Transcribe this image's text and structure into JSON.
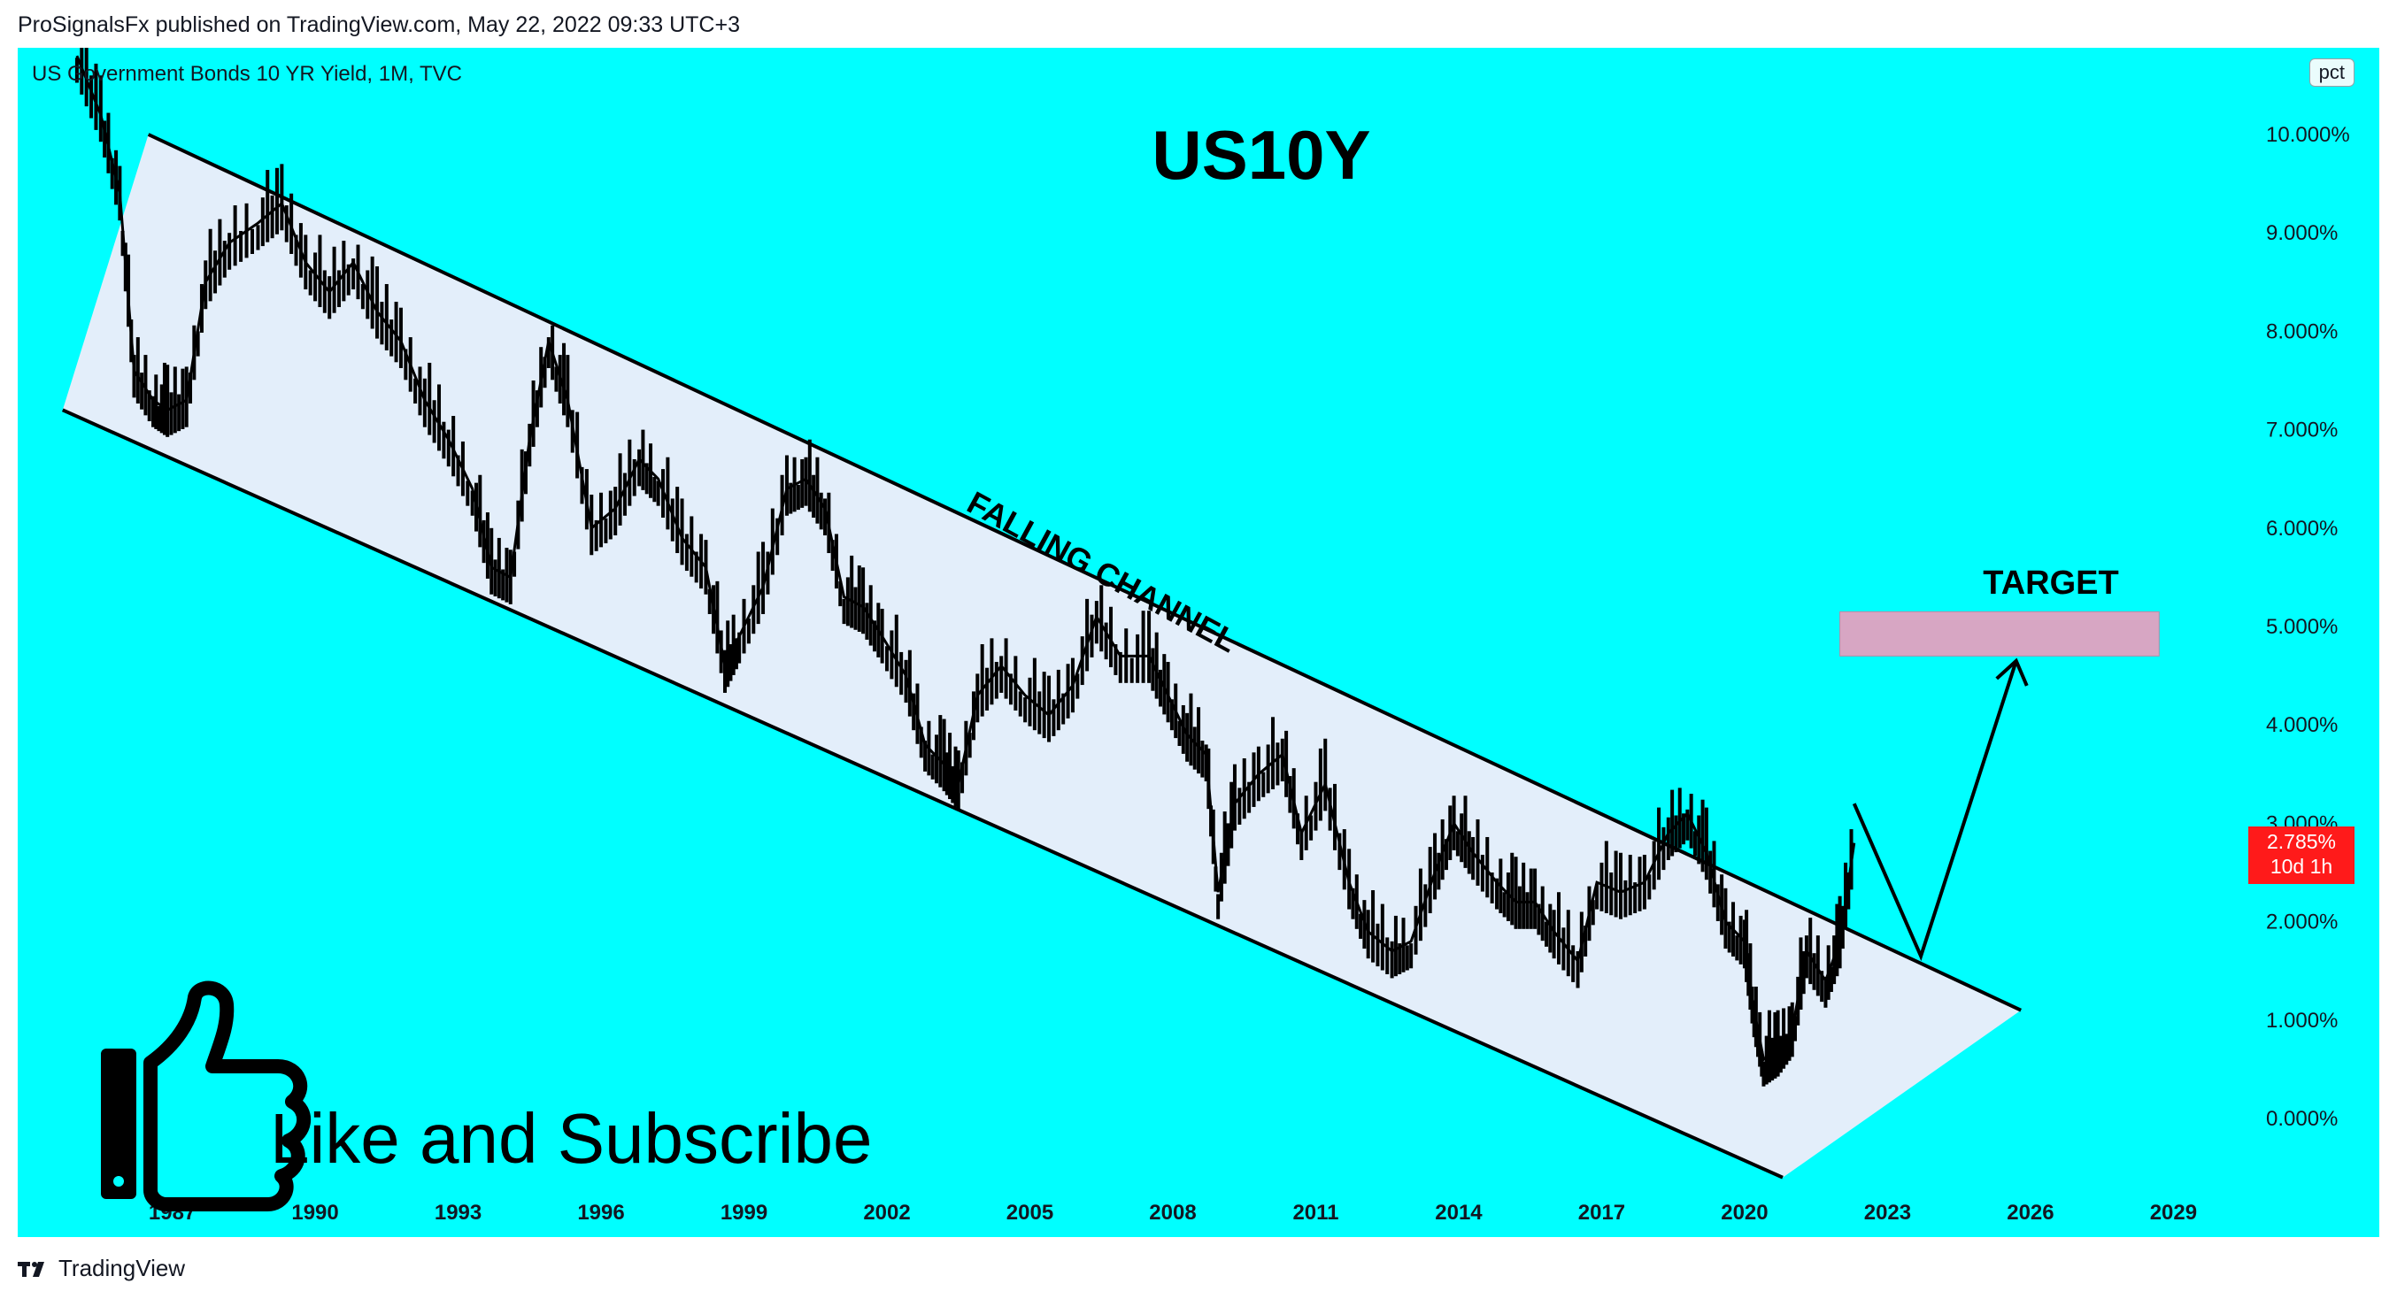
{
  "header": {
    "caption": "ProSignalsFx published on TradingView.com, May 22, 2022 09:33 UTC+3"
  },
  "chart": {
    "symbol": "US Government Bonds 10 YR Yield, 1M, TVC",
    "scale_badge": "pct",
    "title": "US10Y",
    "last_price": "2.785%",
    "countdown": "10d 1h",
    "annotations": {
      "channel_label": "FALLING CHANNEL",
      "target_label": "TARGET",
      "promo_text": "Like and Subscribe"
    }
  },
  "footer": {
    "brand": "TradingView"
  },
  "colors": {
    "background": "#00ffff",
    "channel_fill": "#e3eefa",
    "target_box": "#d7a6c3",
    "price_tag": "#ff1a1a",
    "candles": "#000000"
  },
  "chart_data": {
    "type": "line",
    "title": "US10Y",
    "ylim": [
      -0.4,
      10.8
    ],
    "y_ticks": [
      "10.000%",
      "9.000%",
      "8.000%",
      "7.000%",
      "6.000%",
      "5.000%",
      "4.000%",
      "3.000%",
      "2.000%",
      "1.000%",
      "0.000%"
    ],
    "y_tick_values": [
      10,
      9,
      8,
      7,
      6,
      5,
      4,
      3,
      2,
      1,
      0
    ],
    "xlim": [
      1984.5,
      2030.2
    ],
    "x_ticks": [
      "1987",
      "1990",
      "1993",
      "1996",
      "1999",
      "2002",
      "2005",
      "2008",
      "2011",
      "2014",
      "2017",
      "2020",
      "2023",
      "2026",
      "2029"
    ],
    "x_tick_values": [
      1987,
      1990,
      1993,
      1996,
      1999,
      2002,
      2005,
      2008,
      2011,
      2014,
      2017,
      2020,
      2023,
      2026,
      2029
    ],
    "grid": false,
    "series": [
      {
        "x": [
          1985.0,
          1985.5,
          1985.9,
          1986.2,
          1986.6,
          1986.9,
          1987.3,
          1987.7,
          1988.2,
          1988.8,
          1989.3,
          1989.8,
          1990.3,
          1990.8,
          1991.3,
          1991.8,
          1992.3,
          1992.8,
          1993.3,
          1993.7,
          1994.1,
          1994.5,
          1994.9,
          1995.3,
          1995.8,
          1996.3,
          1996.8,
          1997.2,
          1997.7,
          1998.2,
          1998.6,
          1998.9,
          1999.4,
          1999.9,
          2000.3,
          2000.7,
          2001.1,
          2001.5,
          2001.9,
          2002.4,
          2002.8,
          2003.2,
          2003.5,
          2003.9,
          2004.4,
          2004.9,
          2005.4,
          2005.9,
          2006.4,
          2006.9,
          2007.5,
          2007.9,
          2008.3,
          2008.7,
          2008.95,
          2009.3,
          2009.8,
          2010.3,
          2010.7,
          2011.2,
          2011.7,
          2012.1,
          2012.6,
          2013.0,
          2013.5,
          2013.9,
          2014.3,
          2014.8,
          2015.2,
          2015.6,
          2016.0,
          2016.5,
          2016.9,
          2017.4,
          2017.9,
          2018.4,
          2018.8,
          2019.2,
          2019.6,
          2020.0,
          2020.2,
          2020.4,
          2020.7,
          2021.0,
          2021.3,
          2021.7,
          2022.0,
          2022.3
        ],
        "values": [
          10.8,
          10.2,
          9.4,
          7.6,
          7.3,
          7.2,
          7.3,
          8.5,
          8.9,
          9.1,
          9.3,
          8.7,
          8.4,
          8.7,
          8.2,
          7.9,
          7.3,
          6.9,
          6.4,
          5.6,
          5.5,
          6.9,
          7.9,
          7.3,
          6.0,
          6.2,
          6.7,
          6.5,
          5.9,
          5.6,
          4.6,
          4.9,
          5.4,
          6.4,
          6.5,
          6.2,
          5.3,
          5.2,
          4.9,
          4.5,
          3.8,
          3.6,
          3.4,
          4.3,
          4.6,
          4.3,
          4.1,
          4.4,
          5.1,
          4.7,
          4.7,
          4.3,
          3.9,
          3.7,
          2.3,
          3.2,
          3.5,
          3.7,
          2.9,
          3.4,
          2.4,
          1.9,
          1.7,
          1.8,
          2.5,
          3.0,
          2.7,
          2.4,
          2.2,
          2.2,
          1.9,
          1.6,
          2.4,
          2.3,
          2.4,
          2.9,
          3.1,
          2.7,
          2.0,
          1.8,
          1.1,
          0.6,
          0.7,
          0.9,
          1.7,
          1.4,
          1.8,
          2.8
        ]
      }
    ],
    "annotations": [
      "FALLING CHANNEL",
      "TARGET",
      "Like and Subscribe"
    ]
  }
}
